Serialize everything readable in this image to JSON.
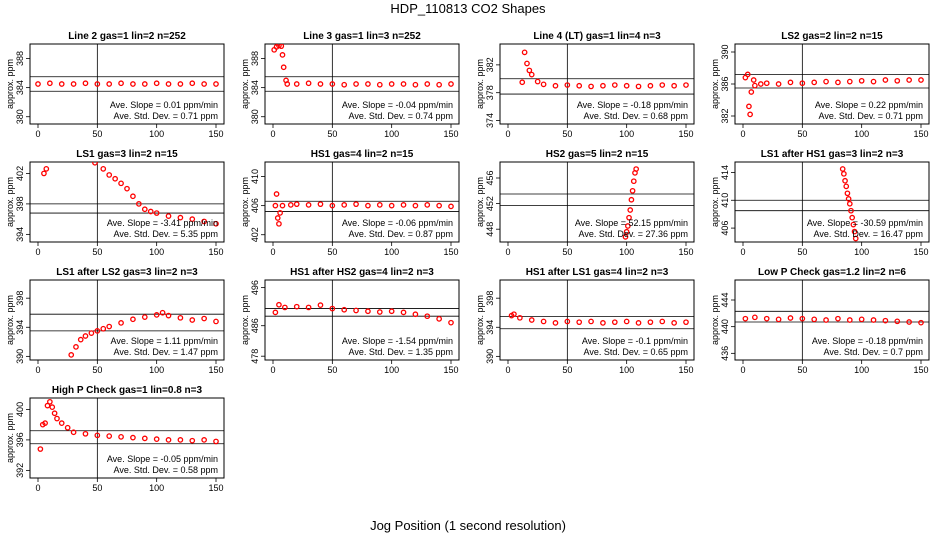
{
  "title": "HDP_110813  CO2 Shapes",
  "xlabel": "Jog Position (1 second resolution)",
  "chart_data": [
    {
      "type": "scatter",
      "title": "Line 2 gas=1 lin=2 n=252",
      "ylabel": "approx. ppm",
      "xlim": [
        0,
        150
      ],
      "ylim": [
        379,
        390
      ],
      "yticks": [
        380,
        384,
        388
      ],
      "xticks": [
        0,
        50,
        100,
        150
      ],
      "hlines": [
        385.5,
        383.5
      ],
      "vline": 50,
      "slope_text": "Ave. Slope = 0.01  ppm/min",
      "sd_text": "Ave. Std. Dev. = 0.71  ppm",
      "color": "#ff0000",
      "points": [
        [
          0,
          384.5
        ],
        [
          10,
          384.6
        ],
        [
          20,
          384.5
        ],
        [
          30,
          384.5
        ],
        [
          40,
          384.6
        ],
        [
          50,
          384.5
        ],
        [
          60,
          384.5
        ],
        [
          70,
          384.6
        ],
        [
          80,
          384.5
        ],
        [
          90,
          384.5
        ],
        [
          100,
          384.6
        ],
        [
          110,
          384.5
        ],
        [
          120,
          384.5
        ],
        [
          130,
          384.6
        ],
        [
          140,
          384.5
        ],
        [
          150,
          384.5
        ]
      ]
    },
    {
      "type": "scatter",
      "title": "Line 3 gas=1 lin=3 n=252",
      "ylabel": "approx. ppm",
      "xlim": [
        0,
        150
      ],
      "ylim": [
        379,
        390
      ],
      "yticks": [
        380,
        384,
        388
      ],
      "xticks": [
        0,
        50,
        100,
        150
      ],
      "hlines": [
        385.5,
        383.5
      ],
      "vline": 50,
      "slope_text": "Ave. Slope = -0.04  ppm/min",
      "sd_text": "Ave. Std. Dev. = 0.74  ppm",
      "color": "#ff0000",
      "points": [
        [
          1,
          389.2
        ],
        [
          3,
          389.6
        ],
        [
          5,
          389.8
        ],
        [
          7,
          389.7
        ],
        [
          8,
          388.5
        ],
        [
          9,
          386.8
        ],
        [
          11,
          385.0
        ],
        [
          12,
          384.5
        ],
        [
          20,
          384.5
        ],
        [
          30,
          384.6
        ],
        [
          40,
          384.5
        ],
        [
          50,
          384.5
        ],
        [
          60,
          384.4
        ],
        [
          70,
          384.5
        ],
        [
          80,
          384.5
        ],
        [
          90,
          384.4
        ],
        [
          100,
          384.5
        ],
        [
          110,
          384.5
        ],
        [
          120,
          384.4
        ],
        [
          130,
          384.5
        ],
        [
          140,
          384.4
        ],
        [
          150,
          384.5
        ]
      ]
    },
    {
      "type": "scatter",
      "title": "Line 4 (LT) gas=1 lin=4 n=3",
      "ylabel": "approx. ppm",
      "xlim": [
        0,
        150
      ],
      "ylim": [
        373.5,
        385
      ],
      "yticks": [
        374,
        378,
        382
      ],
      "xticks": [
        0,
        50,
        100,
        150
      ],
      "hlines": [
        380.0,
        377.8
      ],
      "vline": 50,
      "slope_text": "Ave. Slope = -0.18  ppm/min",
      "sd_text": "Ave. Std. Dev. = 0.68  ppm",
      "color": "#ff0000",
      "points": [
        [
          12,
          379.5
        ],
        [
          14,
          383.8
        ],
        [
          16,
          382.2
        ],
        [
          18,
          381.2
        ],
        [
          20,
          380.6
        ],
        [
          25,
          379.6
        ],
        [
          30,
          379.2
        ],
        [
          40,
          379.0
        ],
        [
          50,
          379.1
        ],
        [
          60,
          379.0
        ],
        [
          70,
          378.9
        ],
        [
          80,
          379.0
        ],
        [
          90,
          379.1
        ],
        [
          100,
          379.0
        ],
        [
          110,
          378.9
        ],
        [
          120,
          379.0
        ],
        [
          130,
          379.1
        ],
        [
          140,
          379.0
        ],
        [
          150,
          379.1
        ]
      ]
    },
    {
      "type": "scatter",
      "title": "LS2 gas=2 lin=2 n=15",
      "ylabel": "approx. ppm",
      "xlim": [
        0,
        150
      ],
      "ylim": [
        381,
        391
      ],
      "yticks": [
        382,
        386,
        390
      ],
      "xticks": [
        0,
        50,
        100,
        150
      ],
      "hlines": [
        387.2,
        385.5
      ],
      "vline": 50,
      "slope_text": "Ave. Slope = 0.22  ppm/min",
      "sd_text": "Ave. Std. Dev. = 0.71  ppm",
      "color": "#ff0000",
      "points": [
        [
          2,
          386.8
        ],
        [
          4,
          387.2
        ],
        [
          5,
          383.2
        ],
        [
          6,
          382.2
        ],
        [
          7,
          385.0
        ],
        [
          9,
          386.5
        ],
        [
          10,
          385.8
        ],
        [
          15,
          386.0
        ],
        [
          20,
          386.1
        ],
        [
          30,
          386.0
        ],
        [
          40,
          386.2
        ],
        [
          50,
          386.1
        ],
        [
          60,
          386.2
        ],
        [
          70,
          386.3
        ],
        [
          80,
          386.2
        ],
        [
          90,
          386.3
        ],
        [
          100,
          386.4
        ],
        [
          110,
          386.3
        ],
        [
          120,
          386.5
        ],
        [
          130,
          386.4
        ],
        [
          140,
          386.5
        ],
        [
          150,
          386.5
        ]
      ]
    },
    {
      "type": "scatter",
      "title": "LS1 gas=3 lin=2 n=15",
      "ylabel": "approx. ppm",
      "xlim": [
        0,
        150
      ],
      "ylim": [
        393,
        403.5
      ],
      "yticks": [
        394,
        398,
        402
      ],
      "xticks": [
        0,
        50,
        100,
        150
      ],
      "hlines": [
        398.0,
        396.8
      ],
      "vline": 50,
      "slope_text": "Ave. Slope = -3.41  ppm/min",
      "sd_text": "Ave. Std. Dev. = 5.35  ppm",
      "color": "#ff0000",
      "points": [
        [
          5,
          402.0
        ],
        [
          7,
          402.6
        ],
        [
          48,
          403.4
        ],
        [
          55,
          402.6
        ],
        [
          60,
          401.8
        ],
        [
          65,
          401.3
        ],
        [
          70,
          400.7
        ],
        [
          75,
          400.0
        ],
        [
          80,
          399.0
        ],
        [
          85,
          398.0
        ],
        [
          90,
          397.3
        ],
        [
          95,
          397.0
        ],
        [
          100,
          396.8
        ],
        [
          110,
          396.4
        ],
        [
          120,
          396.2
        ],
        [
          130,
          396.0
        ],
        [
          140,
          395.7
        ],
        [
          150,
          395.4
        ]
      ]
    },
    {
      "type": "scatter",
      "title": "HS1 gas=4 lin=2 n=15",
      "ylabel": "approx. ppm",
      "xlim": [
        0,
        150
      ],
      "ylim": [
        401,
        412
      ],
      "yticks": [
        402,
        406,
        410
      ],
      "xticks": [
        0,
        50,
        100,
        150
      ],
      "hlines": [
        406.6,
        405.2
      ],
      "vline": 50,
      "slope_text": "Ave. Slope = -0.06  ppm/min",
      "sd_text": "Ave. Std. Dev. = 0.87  ppm",
      "color": "#ff0000",
      "points": [
        [
          2,
          406.0
        ],
        [
          3,
          407.6
        ],
        [
          4,
          404.3
        ],
        [
          5,
          403.5
        ],
        [
          6,
          405.0
        ],
        [
          8,
          406.0
        ],
        [
          15,
          406.1
        ],
        [
          20,
          406.2
        ],
        [
          30,
          406.1
        ],
        [
          40,
          406.2
        ],
        [
          50,
          406.0
        ],
        [
          60,
          406.1
        ],
        [
          70,
          406.2
        ],
        [
          80,
          406.0
        ],
        [
          90,
          406.1
        ],
        [
          100,
          406.0
        ],
        [
          110,
          406.1
        ],
        [
          120,
          406.0
        ],
        [
          130,
          406.1
        ],
        [
          140,
          406.0
        ],
        [
          150,
          405.9
        ]
      ]
    },
    {
      "type": "scatter",
      "title": "HS2 gas=5 lin=2 n=15",
      "ylabel": "approx. ppm",
      "xlim": [
        0,
        150
      ],
      "ylim": [
        446,
        458.5
      ],
      "yticks": [
        448,
        452,
        456
      ],
      "xticks": [
        0,
        50,
        100,
        150
      ],
      "hlines": [
        453.5,
        451.7
      ],
      "vline": 50,
      "slope_text": "Ave. Slope = 52.15  ppm/min",
      "sd_text": "Ave. Std. Dev. = 27.36  ppm",
      "color": "#ff0000",
      "points": [
        [
          99,
          446.8
        ],
        [
          100,
          447.6
        ],
        [
          101,
          448.5
        ],
        [
          102,
          449.8
        ],
        [
          103,
          451.0
        ],
        [
          104,
          452.6
        ],
        [
          105,
          454.0
        ],
        [
          106,
          455.5
        ],
        [
          107,
          456.8
        ],
        [
          108,
          457.4
        ]
      ]
    },
    {
      "type": "scatter",
      "title": "LS1 after HS1 gas=3 lin=2 n=3",
      "ylabel": "approx. ppm",
      "xlim": [
        0,
        150
      ],
      "ylim": [
        404,
        415.5
      ],
      "yticks": [
        406,
        410,
        414
      ],
      "xticks": [
        0,
        50,
        100,
        150
      ],
      "hlines": [
        410.0,
        408.5
      ],
      "vline": 50,
      "slope_text": "Ave. Slope = -30.59  ppm/min",
      "sd_text": "Ave. Std. Dev. = 16.47  ppm",
      "color": "#ff0000",
      "points": [
        [
          84,
          414.5
        ],
        [
          85,
          413.8
        ],
        [
          86,
          412.8
        ],
        [
          87,
          412.0
        ],
        [
          88,
          411.0
        ],
        [
          89,
          410.2
        ],
        [
          90,
          409.5
        ],
        [
          91,
          408.5
        ],
        [
          92,
          407.5
        ],
        [
          93,
          406.5
        ],
        [
          94,
          405.5
        ],
        [
          95,
          404.5
        ]
      ]
    },
    {
      "type": "scatter",
      "title": "LS1 after LS2 gas=3 lin=2 n=3",
      "ylabel": "approx. ppm",
      "xlim": [
        0,
        150
      ],
      "ylim": [
        389.5,
        400.5
      ],
      "yticks": [
        390,
        394,
        398
      ],
      "xticks": [
        0,
        50,
        100,
        150
      ],
      "hlines": [
        395.8,
        393.5
      ],
      "vline": 50,
      "slope_text": "Ave. Slope = 1.11  ppm/min",
      "sd_text": "Ave. Std. Dev. = 1.47  ppm",
      "color": "#ff0000",
      "points": [
        [
          28,
          390.2
        ],
        [
          32,
          391.3
        ],
        [
          36,
          392.3
        ],
        [
          40,
          392.8
        ],
        [
          45,
          393.2
        ],
        [
          50,
          393.5
        ],
        [
          55,
          393.8
        ],
        [
          60,
          394.1
        ],
        [
          70,
          394.6
        ],
        [
          80,
          395.1
        ],
        [
          90,
          395.4
        ],
        [
          100,
          395.7
        ],
        [
          105,
          396.0
        ],
        [
          110,
          395.6
        ],
        [
          120,
          395.3
        ],
        [
          130,
          395.0
        ],
        [
          140,
          395.2
        ],
        [
          150,
          394.8
        ]
      ]
    },
    {
      "type": "scatter",
      "title": "HS1 after HS2 gas=4 lin=2 n=3",
      "ylabel": "approx. ppm",
      "xlim": [
        0,
        150
      ],
      "ylim": [
        477,
        498
      ],
      "yticks": [
        478,
        486,
        496
      ],
      "xticks": [
        0,
        50,
        100,
        150
      ],
      "hlines": [
        490.5,
        488.5
      ],
      "vline": 50,
      "slope_text": "Ave. Slope = -1.54  ppm/min",
      "sd_text": "Ave. Std. Dev. = 1.35  ppm",
      "color": "#ff0000",
      "points": [
        [
          2,
          489.5
        ],
        [
          5,
          491.5
        ],
        [
          10,
          490.8
        ],
        [
          20,
          491.0
        ],
        [
          30,
          490.8
        ],
        [
          40,
          491.4
        ],
        [
          50,
          490.5
        ],
        [
          60,
          490.2
        ],
        [
          70,
          490.0
        ],
        [
          80,
          489.8
        ],
        [
          90,
          489.6
        ],
        [
          100,
          489.8
        ],
        [
          110,
          489.5
        ],
        [
          120,
          489.0
        ],
        [
          130,
          488.5
        ],
        [
          140,
          487.8
        ],
        [
          150,
          486.8
        ]
      ]
    },
    {
      "type": "scatter",
      "title": "HS1 after LS1 gas=4 lin=2 n=3",
      "ylabel": "approx. ppm",
      "xlim": [
        0,
        150
      ],
      "ylim": [
        389.5,
        400.5
      ],
      "yticks": [
        390,
        394,
        398
      ],
      "xticks": [
        0,
        50,
        100,
        150
      ],
      "hlines": [
        395.5,
        393.8
      ],
      "vline": 50,
      "slope_text": "Ave. Slope = -0.1  ppm/min",
      "sd_text": "Ave. Std. Dev. = 0.65  ppm",
      "color": "#ff0000",
      "points": [
        [
          3,
          395.6
        ],
        [
          5,
          395.8
        ],
        [
          10,
          395.3
        ],
        [
          20,
          395.0
        ],
        [
          30,
          394.8
        ],
        [
          40,
          394.6
        ],
        [
          50,
          394.8
        ],
        [
          60,
          394.7
        ],
        [
          70,
          394.8
        ],
        [
          80,
          394.6
        ],
        [
          90,
          394.7
        ],
        [
          100,
          394.8
        ],
        [
          110,
          394.6
        ],
        [
          120,
          394.7
        ],
        [
          130,
          394.8
        ],
        [
          140,
          394.6
        ],
        [
          150,
          394.7
        ]
      ]
    },
    {
      "type": "scatter",
      "title": "Low P Check gas=1.2 lin=2 n=6",
      "ylabel": "approx. ppm",
      "xlim": [
        0,
        150
      ],
      "ylim": [
        435,
        447
      ],
      "yticks": [
        436,
        440,
        444
      ],
      "xticks": [
        0,
        50,
        100,
        150
      ],
      "hlines": [
        442.3,
        440.7
      ],
      "vline": 50,
      "slope_text": "Ave. Slope = -0.18  ppm/min",
      "sd_text": "Ave. Std. Dev. = 0.7  ppm",
      "color": "#ff0000",
      "points": [
        [
          2,
          441.2
        ],
        [
          10,
          441.4
        ],
        [
          20,
          441.2
        ],
        [
          30,
          441.1
        ],
        [
          40,
          441.3
        ],
        [
          50,
          441.2
        ],
        [
          60,
          441.1
        ],
        [
          70,
          441.0
        ],
        [
          80,
          441.2
        ],
        [
          90,
          441.0
        ],
        [
          100,
          441.1
        ],
        [
          110,
          441.0
        ],
        [
          120,
          440.9
        ],
        [
          130,
          440.8
        ],
        [
          140,
          440.7
        ],
        [
          150,
          440.6
        ]
      ]
    },
    {
      "type": "scatter",
      "title": "High P Check gas=1 lin=0.8 n=3",
      "ylabel": "approx. ppm",
      "xlim": [
        0,
        150
      ],
      "ylim": [
        391,
        401.5
      ],
      "yticks": [
        392,
        396,
        400
      ],
      "xticks": [
        0,
        50,
        100,
        150
      ],
      "hlines": [
        397.2,
        395.5
      ],
      "vline": 50,
      "slope_text": "Ave. Slope = -0.05  ppm/min",
      "sd_text": "Ave. Std. Dev. = 0.58  ppm",
      "color": "#ff0000",
      "points": [
        [
          2,
          394.8
        ],
        [
          4,
          398.0
        ],
        [
          6,
          398.2
        ],
        [
          8,
          400.5
        ],
        [
          10,
          401.0
        ],
        [
          12,
          400.3
        ],
        [
          14,
          399.5
        ],
        [
          16,
          398.8
        ],
        [
          20,
          398.2
        ],
        [
          25,
          397.6
        ],
        [
          30,
          397.0
        ],
        [
          40,
          396.8
        ],
        [
          50,
          396.6
        ],
        [
          60,
          396.5
        ],
        [
          70,
          396.4
        ],
        [
          80,
          396.3
        ],
        [
          90,
          396.2
        ],
        [
          100,
          396.1
        ],
        [
          110,
          396.0
        ],
        [
          120,
          396.0
        ],
        [
          130,
          395.9
        ],
        [
          140,
          396.0
        ],
        [
          150,
          395.8
        ]
      ]
    }
  ]
}
